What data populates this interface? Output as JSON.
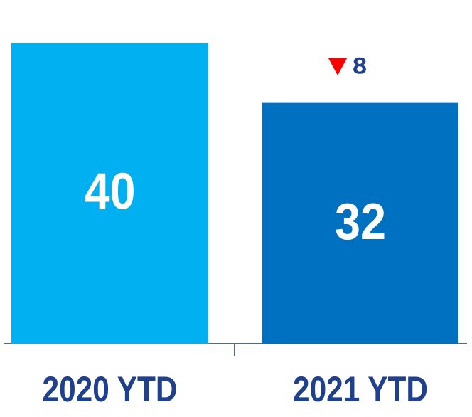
{
  "chart_data": {
    "type": "bar",
    "categories": [
      "2020 YTD",
      "2021 YTD"
    ],
    "values": [
      40,
      32
    ],
    "colors": [
      "#00b0f0",
      "#0070c0"
    ],
    "annotation": "8"
  }
}
